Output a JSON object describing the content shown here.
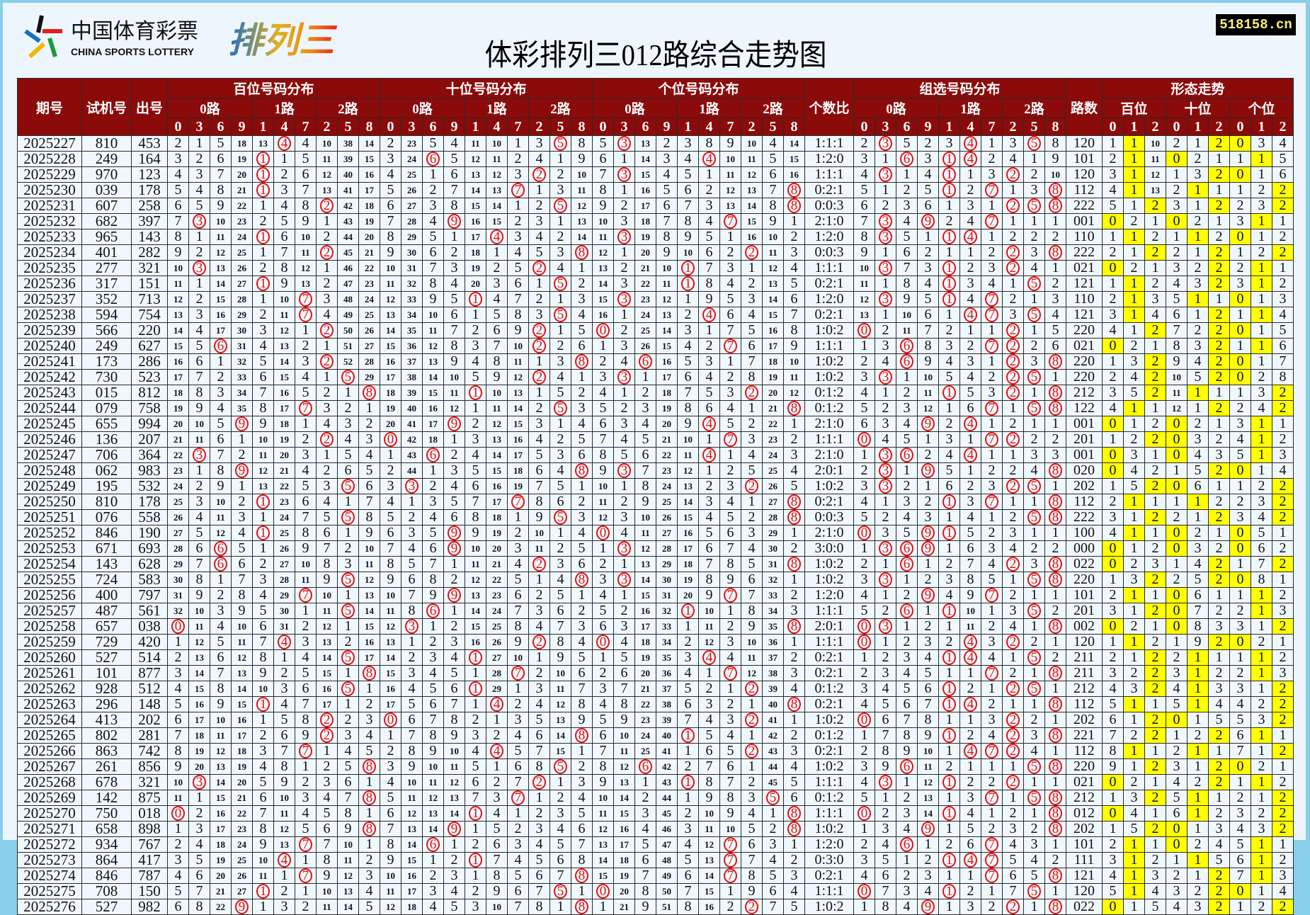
{
  "watermark": "518158.cn",
  "logo": {
    "cn": "中国体育彩票",
    "en": "CHINA SPORTS LOTTERY",
    "game": "排列三"
  },
  "title": "体彩排列三012路综合走势图",
  "headers": {
    "period": "期号",
    "trial": "试机号",
    "draw": "出号",
    "hundreds": "百位号码分布",
    "tens": "十位号码分布",
    "units": "个位号码分布",
    "ratio": "个数比",
    "group": "组选号码分布",
    "roads": "路数",
    "shape": "形态走势",
    "road_labels": [
      "0路",
      "1路",
      "2路"
    ],
    "digit_order": [
      "0",
      "3",
      "6",
      "9",
      "1",
      "4",
      "7",
      "2",
      "5",
      "8"
    ],
    "shape_positions": [
      "百位",
      "十位",
      "个位"
    ],
    "shape_digits": [
      "0",
      "1",
      "2"
    ]
  },
  "colors": {
    "header_bg": "#8b0a0a",
    "cell_bg": "#f0f8ff",
    "hit_circle": "#e31010",
    "shape_hit": "#ffff00",
    "frame": "#87cfea"
  },
  "first_row_cells": {
    "hundreds": [
      2,
      1,
      5,
      18,
      13,
      "4",
      4,
      10,
      38,
      14
    ],
    "tens": [
      2,
      23,
      5,
      4,
      11,
      10,
      1,
      3,
      "5",
      8
    ],
    "units": [
      5,
      "3",
      13,
      2,
      3,
      8,
      9,
      10,
      4,
      14
    ],
    "group": [
      2,
      "3",
      5,
      2,
      3,
      "4",
      1,
      3,
      "5",
      8
    ],
    "shape": [
      1,
      "1",
      10,
      2,
      1,
      "2",
      "0",
      3,
      4
    ]
  },
  "rows": [
    {
      "period": "2025227",
      "trial": "810",
      "draw": "453"
    },
    {
      "period": "2025228",
      "trial": "249",
      "draw": "164"
    },
    {
      "period": "2025229",
      "trial": "970",
      "draw": "123"
    },
    {
      "period": "2025230",
      "trial": "039",
      "draw": "178"
    },
    {
      "period": "2025231",
      "trial": "607",
      "draw": "258"
    },
    {
      "period": "2025232",
      "trial": "682",
      "draw": "397"
    },
    {
      "period": "2025233",
      "trial": "965",
      "draw": "143"
    },
    {
      "period": "2025234",
      "trial": "401",
      "draw": "282"
    },
    {
      "period": "2025235",
      "trial": "277",
      "draw": "321"
    },
    {
      "period": "2025236",
      "trial": "317",
      "draw": "151"
    },
    {
      "period": "2025237",
      "trial": "352",
      "draw": "713"
    },
    {
      "period": "2025238",
      "trial": "594",
      "draw": "754"
    },
    {
      "period": "2025239",
      "trial": "566",
      "draw": "220"
    },
    {
      "period": "2025240",
      "trial": "249",
      "draw": "627"
    },
    {
      "period": "2025241",
      "trial": "173",
      "draw": "286"
    },
    {
      "period": "2025242",
      "trial": "730",
      "draw": "523"
    },
    {
      "period": "2025243",
      "trial": "015",
      "draw": "812"
    },
    {
      "period": "2025244",
      "trial": "079",
      "draw": "758"
    },
    {
      "period": "2025245",
      "trial": "655",
      "draw": "994"
    },
    {
      "period": "2025246",
      "trial": "136",
      "draw": "207"
    },
    {
      "period": "2025247",
      "trial": "706",
      "draw": "364"
    },
    {
      "period": "2025248",
      "trial": "062",
      "draw": "983"
    },
    {
      "period": "2025249",
      "trial": "195",
      "draw": "532"
    },
    {
      "period": "2025250",
      "trial": "810",
      "draw": "178"
    },
    {
      "period": "2025251",
      "trial": "076",
      "draw": "558"
    },
    {
      "period": "2025252",
      "trial": "846",
      "draw": "190"
    },
    {
      "period": "2025253",
      "trial": "671",
      "draw": "693"
    },
    {
      "period": "2025254",
      "trial": "143",
      "draw": "628"
    },
    {
      "period": "2025255",
      "trial": "724",
      "draw": "583"
    },
    {
      "period": "2025256",
      "trial": "400",
      "draw": "797"
    },
    {
      "period": "2025257",
      "trial": "487",
      "draw": "561"
    },
    {
      "period": "2025258",
      "trial": "657",
      "draw": "038"
    },
    {
      "period": "2025259",
      "trial": "729",
      "draw": "420"
    },
    {
      "period": "2025260",
      "trial": "527",
      "draw": "514"
    },
    {
      "period": "2025261",
      "trial": "101",
      "draw": "877"
    },
    {
      "period": "2025262",
      "trial": "928",
      "draw": "512"
    },
    {
      "period": "2025263",
      "trial": "296",
      "draw": "148"
    },
    {
      "period": "2025264",
      "trial": "413",
      "draw": "202"
    },
    {
      "period": "2025265",
      "trial": "802",
      "draw": "281"
    },
    {
      "period": "2025266",
      "trial": "863",
      "draw": "742"
    },
    {
      "period": "2025267",
      "trial": "261",
      "draw": "856"
    },
    {
      "period": "2025268",
      "trial": "678",
      "draw": "321"
    },
    {
      "period": "2025269",
      "trial": "142",
      "draw": "875"
    },
    {
      "period": "2025270",
      "trial": "750",
      "draw": "018"
    },
    {
      "period": "2025271",
      "trial": "658",
      "draw": "898"
    },
    {
      "period": "2025272",
      "trial": "934",
      "draw": "767"
    },
    {
      "period": "2025273",
      "trial": "864",
      "draw": "417"
    },
    {
      "period": "2025274",
      "trial": "846",
      "draw": "787"
    },
    {
      "period": "2025275",
      "trial": "708",
      "draw": "150"
    },
    {
      "period": "2025276",
      "trial": "527",
      "draw": "982"
    }
  ]
}
